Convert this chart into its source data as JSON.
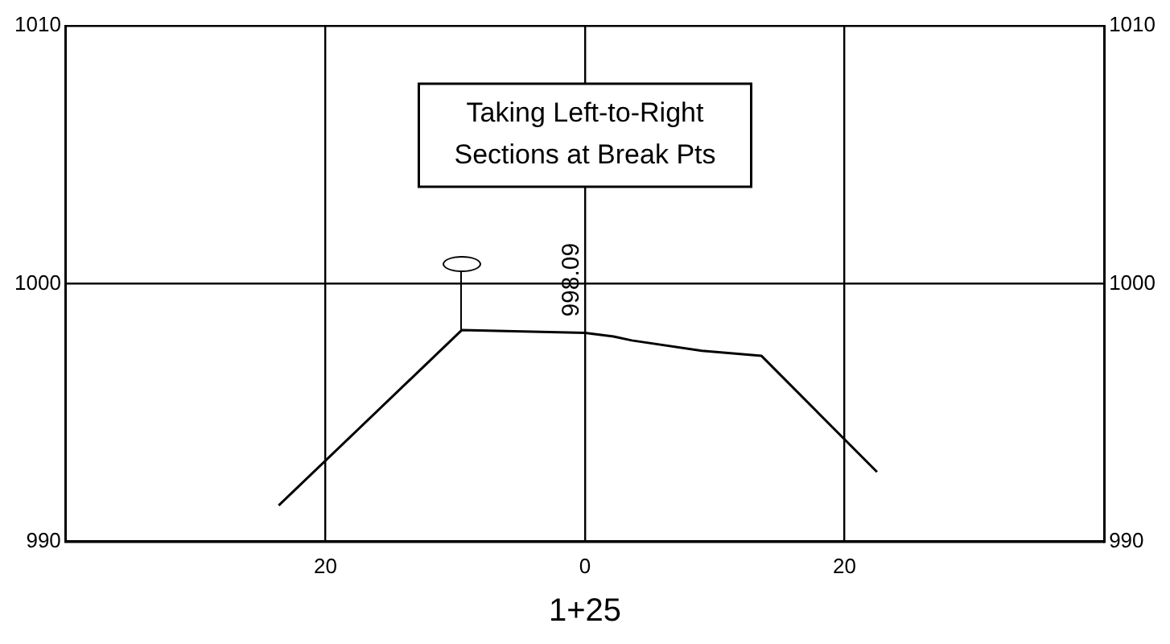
{
  "chart_data": {
    "type": "line",
    "xlabel": "1+25",
    "x": [
      -23.6,
      -9.5,
      0,
      2.2,
      3.6,
      9,
      13.6,
      22.5
    ],
    "series": [
      {
        "color": "#000000",
        "values": [
          991.4,
          998.2,
          998.09,
          997.95,
          997.8,
          997.4,
          997.2,
          992.7
        ]
      }
    ],
    "xlim": [
      -40,
      40
    ],
    "xticks": [
      {
        "value": -20,
        "label": "20"
      },
      0,
      20
    ],
    "ylim": [
      990,
      1010
    ],
    "yticks": [
      990,
      1000,
      1010
    ],
    "y2lim": [
      990,
      1010
    ],
    "y2ticks": [
      990,
      1000,
      1010
    ],
    "grid": true,
    "legend": false,
    "marker": "none",
    "line_style": "solid",
    "annotations": [
      "Taking Left-to-Right\nSections at Break Pts",
      {
        "text": "998.09",
        "x": 0,
        "y": 998.09
      }
    ]
  }
}
